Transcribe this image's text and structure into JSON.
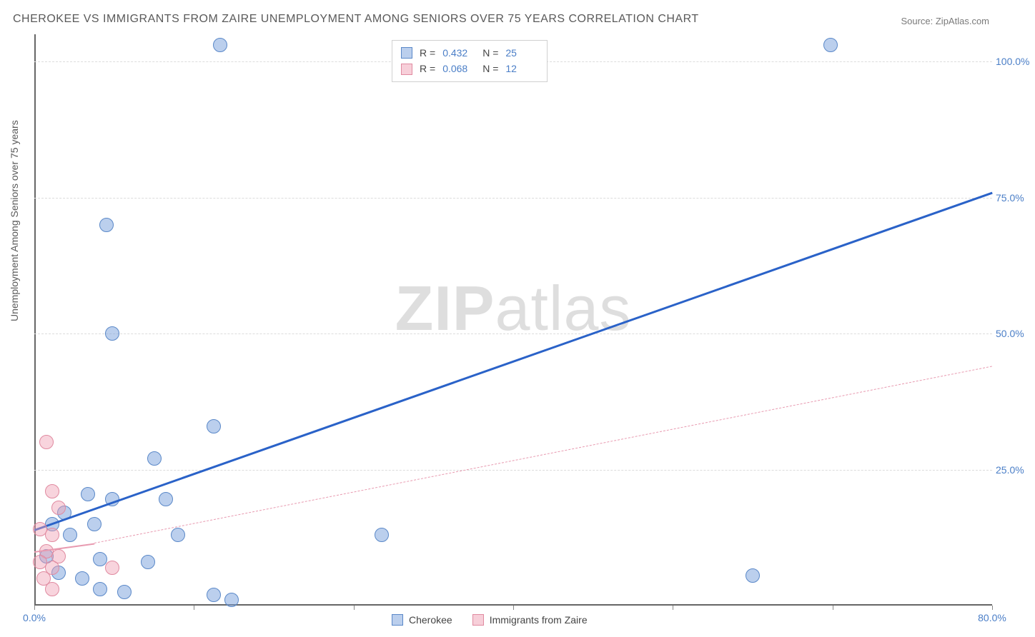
{
  "title": "CHEROKEE VS IMMIGRANTS FROM ZAIRE UNEMPLOYMENT AMONG SENIORS OVER 75 YEARS CORRELATION CHART",
  "source": "Source: ZipAtlas.com",
  "yaxis_label": "Unemployment Among Seniors over 75 years",
  "watermark_a": "ZIP",
  "watermark_b": "atlas",
  "chart": {
    "type": "scatter",
    "xlim": [
      0,
      80
    ],
    "ylim": [
      0,
      105
    ],
    "xticks": [
      {
        "v": 0,
        "label": "0.0%"
      },
      {
        "v": 80,
        "label": "80.0%"
      }
    ],
    "xtick_marks": [
      0,
      13.33,
      26.67,
      40,
      53.33,
      66.67,
      80
    ],
    "yticks": [
      {
        "v": 25,
        "label": "25.0%"
      },
      {
        "v": 50,
        "label": "50.0%"
      },
      {
        "v": 75,
        "label": "75.0%"
      },
      {
        "v": 100,
        "label": "100.0%"
      }
    ],
    "grid_color": "#dcdcdc",
    "background_color": "#ffffff",
    "marker_radius": 10,
    "series": [
      {
        "name": "Cherokee",
        "color_fill": "rgba(120,160,220,0.5)",
        "color_stroke": "#5a88c8",
        "class": "blue",
        "R": "0.432",
        "N": "25",
        "trend": {
          "x1": 0,
          "y1": 14,
          "x2": 80,
          "y2": 76,
          "style": "solid",
          "color": "#2a62c8"
        },
        "points": [
          {
            "x": 15.5,
            "y": 103
          },
          {
            "x": 66.5,
            "y": 103
          },
          {
            "x": 6.0,
            "y": 70
          },
          {
            "x": 6.5,
            "y": 50
          },
          {
            "x": 15.0,
            "y": 33
          },
          {
            "x": 10.0,
            "y": 27
          },
          {
            "x": 4.5,
            "y": 20.5
          },
          {
            "x": 6.5,
            "y": 19.5
          },
          {
            "x": 11.0,
            "y": 19.5
          },
          {
            "x": 2.5,
            "y": 17
          },
          {
            "x": 1.5,
            "y": 15
          },
          {
            "x": 5.0,
            "y": 15
          },
          {
            "x": 3.0,
            "y": 13
          },
          {
            "x": 12.0,
            "y": 13
          },
          {
            "x": 29.0,
            "y": 13
          },
          {
            "x": 1.0,
            "y": 9
          },
          {
            "x": 5.5,
            "y": 8.5
          },
          {
            "x": 9.5,
            "y": 8
          },
          {
            "x": 2.0,
            "y": 6
          },
          {
            "x": 4.0,
            "y": 5
          },
          {
            "x": 60.0,
            "y": 5.5
          },
          {
            "x": 5.5,
            "y": 3
          },
          {
            "x": 7.5,
            "y": 2.5
          },
          {
            "x": 15.0,
            "y": 2
          },
          {
            "x": 16.5,
            "y": 1
          }
        ]
      },
      {
        "name": "Immigrants from Zaire",
        "color_fill": "rgba(240,160,180,0.45)",
        "color_stroke": "#e08aa0",
        "class": "pink",
        "R": "0.068",
        "N": "12",
        "trend_solid": {
          "x1": 0,
          "y1": 10,
          "x2": 5,
          "y2": 11.5
        },
        "trend_dash": {
          "x1": 5,
          "y1": 11.5,
          "x2": 80,
          "y2": 44
        },
        "points": [
          {
            "x": 1.0,
            "y": 30
          },
          {
            "x": 1.5,
            "y": 21
          },
          {
            "x": 2.0,
            "y": 18
          },
          {
            "x": 0.5,
            "y": 14
          },
          {
            "x": 1.5,
            "y": 13
          },
          {
            "x": 1.0,
            "y": 10
          },
          {
            "x": 2.0,
            "y": 9
          },
          {
            "x": 0.5,
            "y": 8
          },
          {
            "x": 1.5,
            "y": 7
          },
          {
            "x": 6.5,
            "y": 7
          },
          {
            "x": 0.8,
            "y": 5
          },
          {
            "x": 1.5,
            "y": 3
          }
        ]
      }
    ]
  },
  "legend_top": {
    "rows": [
      {
        "swatch": "swatch-blue",
        "r_label": "R =",
        "r_val": "0.432",
        "n_label": "N =",
        "n_val": "25"
      },
      {
        "swatch": "swatch-pink",
        "r_label": "R =",
        "r_val": "0.068",
        "n_label": "N =",
        "n_val": "12"
      }
    ]
  },
  "legend_bottom": {
    "items": [
      {
        "swatch": "swatch-blue",
        "label": "Cherokee"
      },
      {
        "swatch": "swatch-pink",
        "label": "Immigrants from Zaire"
      }
    ]
  }
}
